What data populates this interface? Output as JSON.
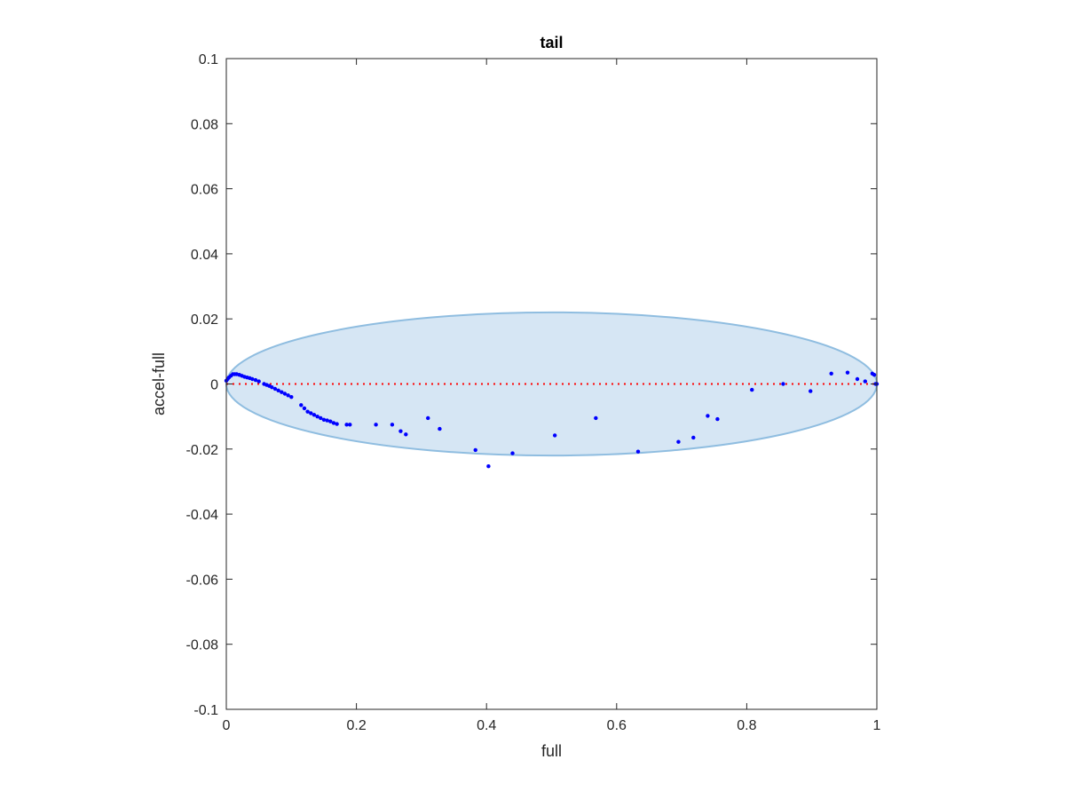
{
  "chart_data": {
    "type": "scatter",
    "title": "tail",
    "xlabel": "full",
    "ylabel": "accel-full",
    "xlim": [
      0,
      1
    ],
    "ylim": [
      -0.1,
      0.1
    ],
    "xticks": [
      "0",
      "0.2",
      "0.4",
      "0.6",
      "0.8",
      "1"
    ],
    "xtick_values": [
      0,
      0.2,
      0.4,
      0.6,
      0.8,
      1
    ],
    "yticks": [
      "-0.1",
      "-0.08",
      "-0.06",
      "-0.04",
      "-0.02",
      "0",
      "0.02",
      "0.04",
      "0.06",
      "0.08",
      "0.1"
    ],
    "ytick_values": [
      -0.1,
      -0.08,
      -0.06,
      -0.04,
      -0.02,
      0,
      0.02,
      0.04,
      0.06,
      0.08,
      0.1
    ],
    "grid": false,
    "reference_line": {
      "y": 0,
      "color": "#ff0000",
      "style": "dotted"
    },
    "ellipse": {
      "cx": 0.5,
      "cy": 0,
      "rx": 0.5,
      "ry": 0.022,
      "fill": "#d6e6f4",
      "stroke": "#8fbde0"
    },
    "series": [
      {
        "color": "#0000ff",
        "points": [
          [
            0.0,
            0.001
          ],
          [
            0.002,
            0.0015
          ],
          [
            0.004,
            0.002
          ],
          [
            0.007,
            0.0025
          ],
          [
            0.01,
            0.003
          ],
          [
            0.013,
            0.003
          ],
          [
            0.016,
            0.003
          ],
          [
            0.02,
            0.0028
          ],
          [
            0.024,
            0.0025
          ],
          [
            0.028,
            0.0022
          ],
          [
            0.032,
            0.002
          ],
          [
            0.036,
            0.0018
          ],
          [
            0.04,
            0.0015
          ],
          [
            0.045,
            0.0012
          ],
          [
            0.05,
            0.0008
          ],
          [
            0.058,
            0.0
          ],
          [
            0.062,
            -0.0003
          ],
          [
            0.066,
            -0.0006
          ],
          [
            0.07,
            -0.001
          ],
          [
            0.075,
            -0.0015
          ],
          [
            0.08,
            -0.002
          ],
          [
            0.085,
            -0.0025
          ],
          [
            0.09,
            -0.003
          ],
          [
            0.095,
            -0.0035
          ],
          [
            0.1,
            -0.004
          ],
          [
            0.115,
            -0.0065
          ],
          [
            0.12,
            -0.0075
          ],
          [
            0.125,
            -0.0085
          ],
          [
            0.13,
            -0.009
          ],
          [
            0.135,
            -0.0095
          ],
          [
            0.14,
            -0.01
          ],
          [
            0.145,
            -0.0105
          ],
          [
            0.15,
            -0.011
          ],
          [
            0.155,
            -0.0112
          ],
          [
            0.16,
            -0.0115
          ],
          [
            0.165,
            -0.012
          ],
          [
            0.17,
            -0.0123
          ],
          [
            0.185,
            -0.0125
          ],
          [
            0.19,
            -0.0125
          ],
          [
            0.23,
            -0.0125
          ],
          [
            0.255,
            -0.0125
          ],
          [
            0.268,
            -0.0145
          ],
          [
            0.276,
            -0.0155
          ],
          [
            0.31,
            -0.0105
          ],
          [
            0.328,
            -0.0138
          ],
          [
            0.383,
            -0.0203
          ],
          [
            0.403,
            -0.0253
          ],
          [
            0.44,
            -0.0213
          ],
          [
            0.505,
            -0.0158
          ],
          [
            0.568,
            -0.0105
          ],
          [
            0.633,
            -0.0208
          ],
          [
            0.695,
            -0.0178
          ],
          [
            0.718,
            -0.0165
          ],
          [
            0.74,
            -0.0098
          ],
          [
            0.755,
            -0.0108
          ],
          [
            0.808,
            -0.0018
          ],
          [
            0.856,
            0.0
          ],
          [
            0.898,
            -0.0022
          ],
          [
            0.93,
            0.0032
          ],
          [
            0.955,
            0.0035
          ],
          [
            0.97,
            0.0015
          ],
          [
            0.982,
            0.0008
          ],
          [
            0.993,
            0.0032
          ],
          [
            0.996,
            0.0028
          ],
          [
            0.998,
            0.0
          ],
          [
            1.0,
            0.0
          ]
        ]
      }
    ]
  }
}
